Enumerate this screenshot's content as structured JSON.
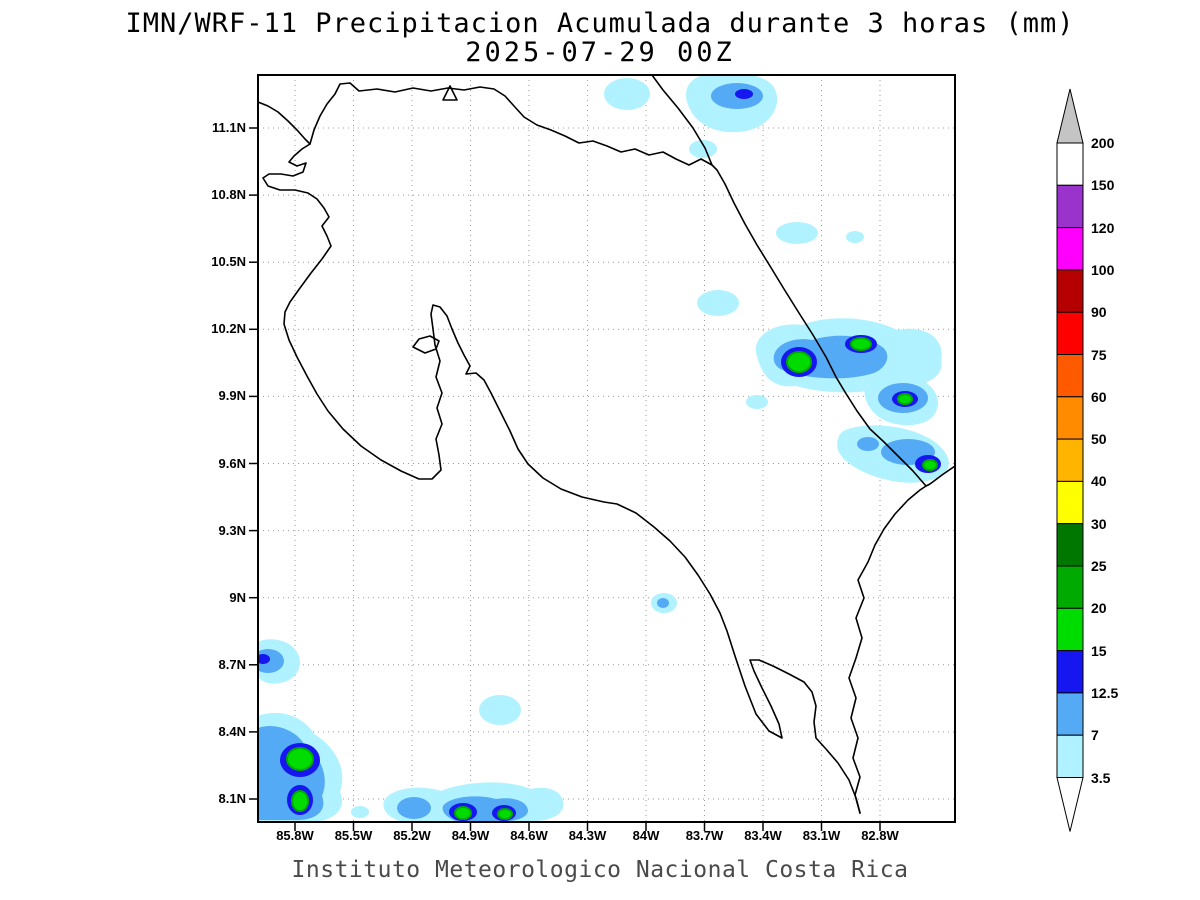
{
  "title": {
    "line1": "IMN/WRF-11 Precipitacion Acumulada durante 3 horas (mm)",
    "line2": "2025-07-29 00Z"
  },
  "footer": {
    "text": "Instituto Meteorologico Nacional Costa Rica"
  },
  "map": {
    "lat_ticks": [
      "11.1N",
      "10.8N",
      "10.5N",
      "10.2N",
      "9.9N",
      "9.6N",
      "9.3N",
      "9N",
      "8.7N",
      "8.4N",
      "8.1N"
    ],
    "lon_ticks": [
      "85.8W",
      "85.5W",
      "85.2W",
      "84.9W",
      "84.6W",
      "84.3W",
      "84W",
      "83.7W",
      "83.4W",
      "83.1W",
      "82.8W"
    ]
  },
  "colorbar": {
    "labels": [
      "200",
      "150",
      "120",
      "100",
      "90",
      "75",
      "60",
      "50",
      "40",
      "30",
      "25",
      "20",
      "15",
      "12.5",
      "7",
      "3.5"
    ],
    "segment_colors": [
      "#ffffff",
      "#9933cc",
      "#ff00ff",
      "#b40000",
      "#ff0000",
      "#ff5a00",
      "#ff8c00",
      "#ffb400",
      "#ffff00",
      "#007800",
      "#00aa00",
      "#00dc00",
      "#1616f0",
      "#55aaf5",
      "#b0f2ff"
    ],
    "above_max_color": "#c4c4c4",
    "below_min_color": "#ffffff"
  },
  "palette": {
    "mm_3_5": "#b0f2ff",
    "mm_7": "#55aaf5",
    "mm_12_5": "#1616f0",
    "mm_15": "#00dc00",
    "mm_20": "#00aa00",
    "mm_25": "#007800"
  }
}
